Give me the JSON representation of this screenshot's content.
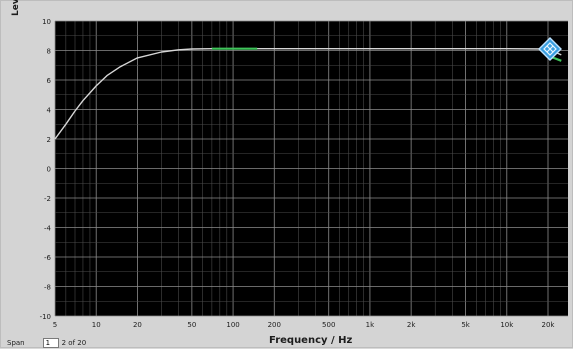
{
  "window": {
    "background": "#d4d4d4",
    "plot_background": "#000000",
    "grid_color": "#8c8c8c",
    "trace_colors": [
      "#d6d6d6",
      "#3fc45a"
    ]
  },
  "footer": {
    "zoom_label": "Span",
    "zoom_value": "1",
    "zoom_suffix": "2 of 20"
  },
  "marker": {
    "icon": "diamond-marker-icon",
    "color": "#3a9fe0"
  },
  "chart_data": {
    "type": "line",
    "title": "",
    "xlabel": "Frequency / Hz",
    "ylabel": "Level/dBV",
    "xscale": "log",
    "xlim": [
      5,
      28000
    ],
    "ylim": [
      -10,
      10
    ],
    "grid": true,
    "x_ticks": [
      5,
      10,
      20,
      50,
      100,
      200,
      500,
      1000,
      2000,
      5000,
      10000,
      20000
    ],
    "x_tick_labels": [
      "5",
      "10",
      "20",
      "50",
      "100",
      "200",
      "500",
      "1k",
      "2k",
      "5k",
      "10k",
      "20k"
    ],
    "y_ticks": [
      10,
      8,
      6,
      4,
      2,
      0,
      -2,
      -4,
      -6,
      -8,
      -10
    ],
    "y_tick_labels": [
      "10",
      "8",
      "6",
      "4",
      "2",
      "0",
      "-2",
      "-4",
      "-6",
      "-8",
      "-10"
    ],
    "series": [
      {
        "color": "#d6d6d6",
        "x": [
          5,
          6,
          7,
          8,
          10,
          12,
          15,
          20,
          30,
          40,
          50,
          70,
          100,
          200,
          500,
          1000,
          2000,
          5000,
          10000,
          20000,
          25000
        ],
        "y": [
          2.0,
          3.0,
          3.9,
          4.6,
          5.6,
          6.3,
          6.9,
          7.5,
          7.9,
          8.05,
          8.1,
          8.12,
          8.12,
          8.12,
          8.12,
          8.12,
          8.12,
          8.12,
          8.12,
          8.1,
          7.7
        ]
      },
      {
        "color": "#3fc45a",
        "x": [
          70,
          80,
          100,
          120,
          150
        ],
        "y": [
          8.12,
          8.12,
          8.12,
          8.12,
          8.12
        ]
      },
      {
        "color": "#3fc45a",
        "x": [
          20000,
          22000,
          25000
        ],
        "y": [
          7.6,
          7.5,
          7.3
        ]
      }
    ]
  }
}
